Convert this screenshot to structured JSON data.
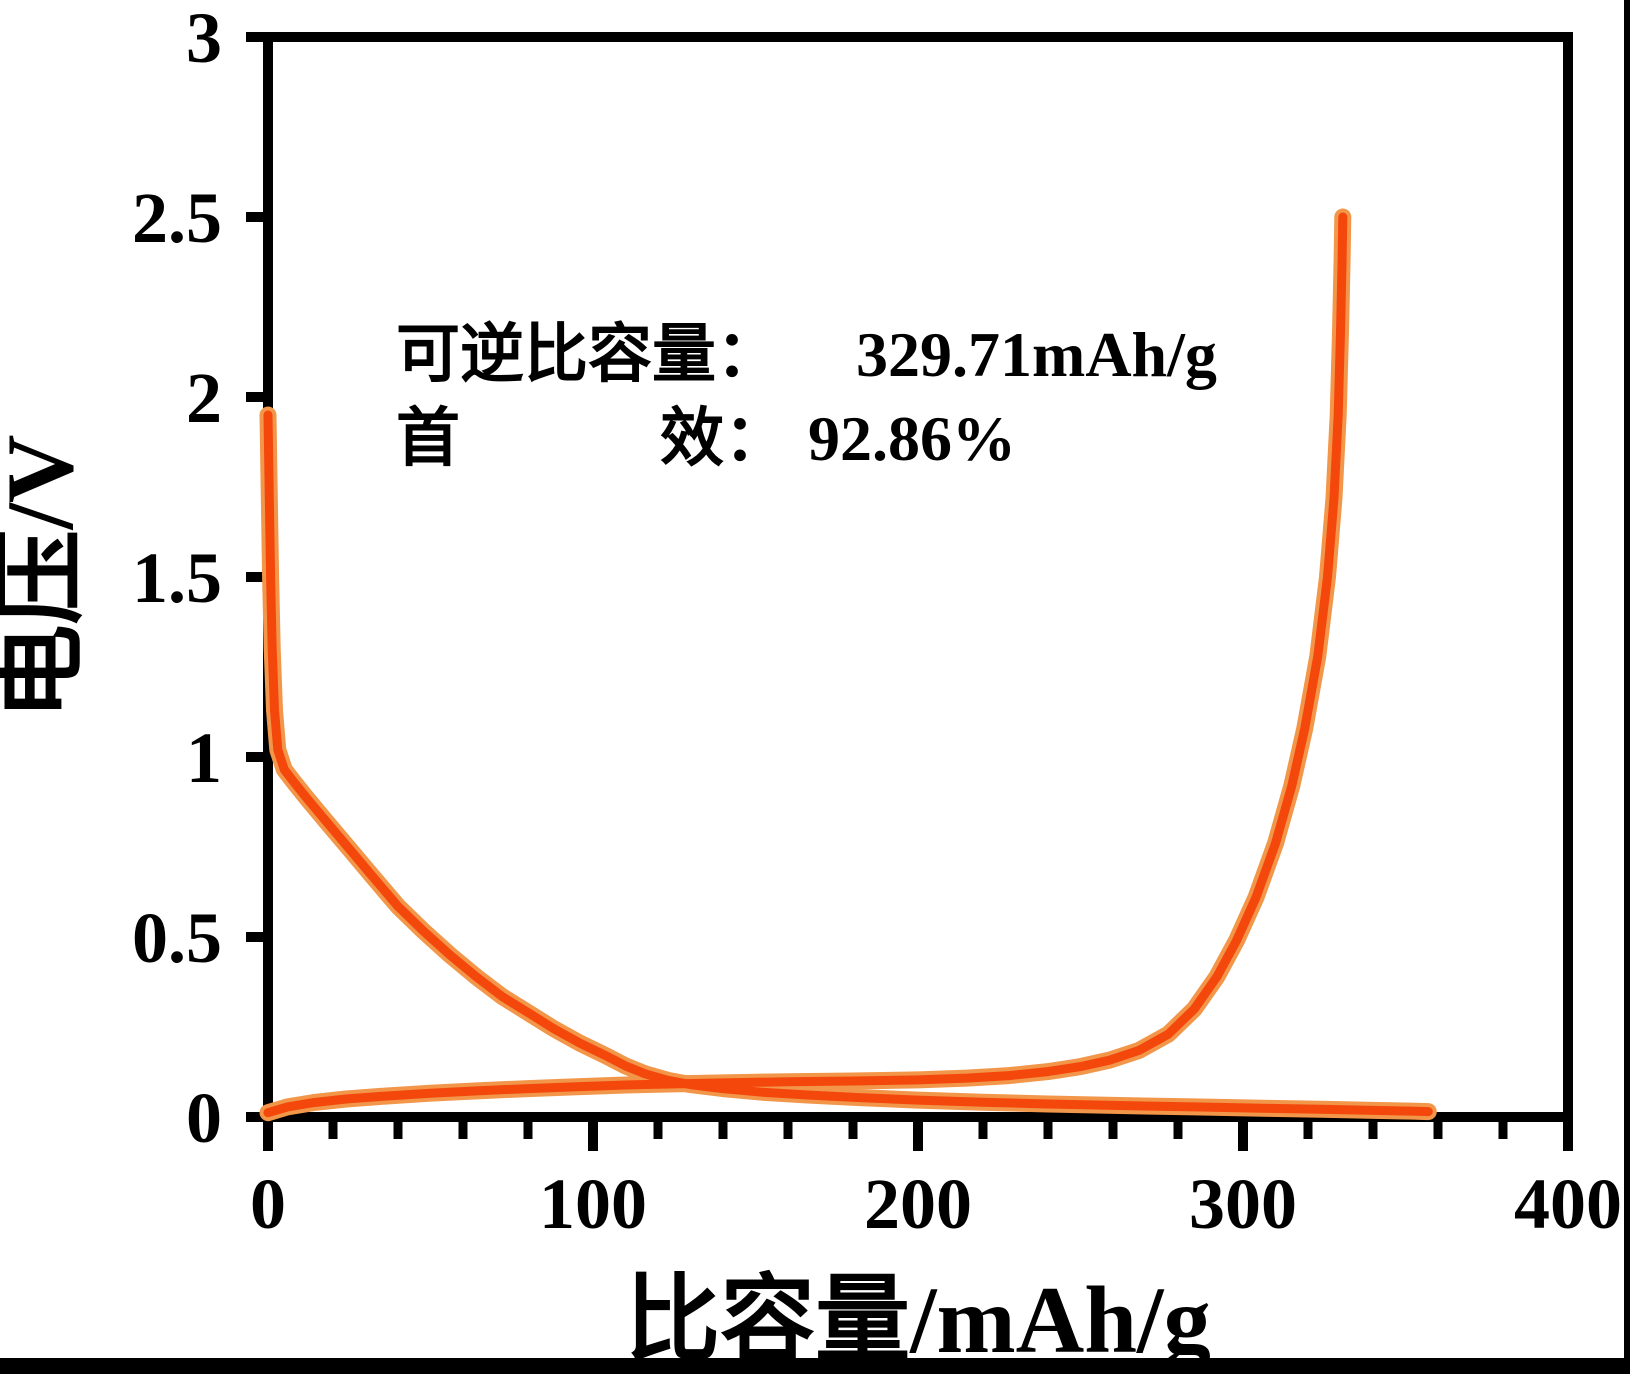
{
  "chart_data": {
    "type": "line",
    "title": "",
    "xlabel": "比容量/mAh/g",
    "ylabel": "电压/V",
    "xlim": [
      0,
      400
    ],
    "ylim": [
      0,
      3
    ],
    "grid": false,
    "legend": "none",
    "x_ticks": {
      "major": [
        0,
        100,
        200,
        300,
        400
      ],
      "labels": [
        "0",
        "100",
        "200",
        "300",
        "400"
      ],
      "minor_step": 20
    },
    "y_ticks": {
      "major": [
        0,
        0.5,
        1,
        1.5,
        2,
        2.5,
        3
      ],
      "labels": [
        "0",
        "0.5",
        "1",
        "1.5",
        "2",
        "2.5",
        "3"
      ]
    },
    "annotations": {
      "line1_label": "可逆比容量：",
      "line1_value": "329.71mAh/g",
      "line2_label_first": "首",
      "line2_label_second": "效：",
      "line2_value": "92.86%"
    },
    "colors": {
      "line_core": "#F4470C",
      "line_halo": "#F2964A",
      "axis": "#000000",
      "background": "#FFFFFF"
    },
    "series": [
      {
        "name": "discharge-curve",
        "points": [
          [
            0,
            1.95
          ],
          [
            0.4,
            1.72
          ],
          [
            0.8,
            1.5
          ],
          [
            1.3,
            1.3
          ],
          [
            2,
            1.13
          ],
          [
            3,
            1.02
          ],
          [
            5,
            0.965
          ],
          [
            8,
            0.93
          ],
          [
            12,
            0.885
          ],
          [
            18,
            0.82
          ],
          [
            25,
            0.745
          ],
          [
            32,
            0.67
          ],
          [
            40,
            0.585
          ],
          [
            48,
            0.515
          ],
          [
            56,
            0.45
          ],
          [
            64,
            0.39
          ],
          [
            72,
            0.335
          ],
          [
            80,
            0.29
          ],
          [
            88,
            0.245
          ],
          [
            96,
            0.205
          ],
          [
            104,
            0.17
          ],
          [
            110,
            0.142
          ],
          [
            116,
            0.12
          ],
          [
            123,
            0.102
          ],
          [
            130,
            0.09
          ],
          [
            140,
            0.079
          ],
          [
            152,
            0.069
          ],
          [
            166,
            0.061
          ],
          [
            182,
            0.054
          ],
          [
            200,
            0.047
          ],
          [
            220,
            0.041
          ],
          [
            240,
            0.036
          ],
          [
            262,
            0.032
          ],
          [
            285,
            0.028
          ],
          [
            308,
            0.024
          ],
          [
            326,
            0.021
          ],
          [
            342,
            0.018
          ],
          [
            352,
            0.0165
          ],
          [
            357,
            0.015
          ]
        ]
      },
      {
        "name": "charge-curve",
        "points": [
          [
            0,
            0.012
          ],
          [
            6,
            0.028
          ],
          [
            14,
            0.04
          ],
          [
            24,
            0.05
          ],
          [
            36,
            0.058
          ],
          [
            50,
            0.066
          ],
          [
            65,
            0.073
          ],
          [
            80,
            0.079
          ],
          [
            95,
            0.084
          ],
          [
            110,
            0.089
          ],
          [
            125,
            0.092
          ],
          [
            142,
            0.095
          ],
          [
            160,
            0.098
          ],
          [
            180,
            0.1
          ],
          [
            200,
            0.103
          ],
          [
            215,
            0.108
          ],
          [
            228,
            0.115
          ],
          [
            240,
            0.126
          ],
          [
            250,
            0.14
          ],
          [
            259,
            0.158
          ],
          [
            268,
            0.185
          ],
          [
            277,
            0.23
          ],
          [
            285,
            0.3
          ],
          [
            292,
            0.39
          ],
          [
            298,
            0.49
          ],
          [
            304,
            0.61
          ],
          [
            310,
            0.76
          ],
          [
            315,
            0.92
          ],
          [
            319,
            1.08
          ],
          [
            323,
            1.28
          ],
          [
            326,
            1.5
          ],
          [
            328,
            1.72
          ],
          [
            329.3,
            1.95
          ],
          [
            330,
            2.18
          ],
          [
            330.5,
            2.38
          ],
          [
            330.7,
            2.5
          ]
        ]
      }
    ]
  }
}
